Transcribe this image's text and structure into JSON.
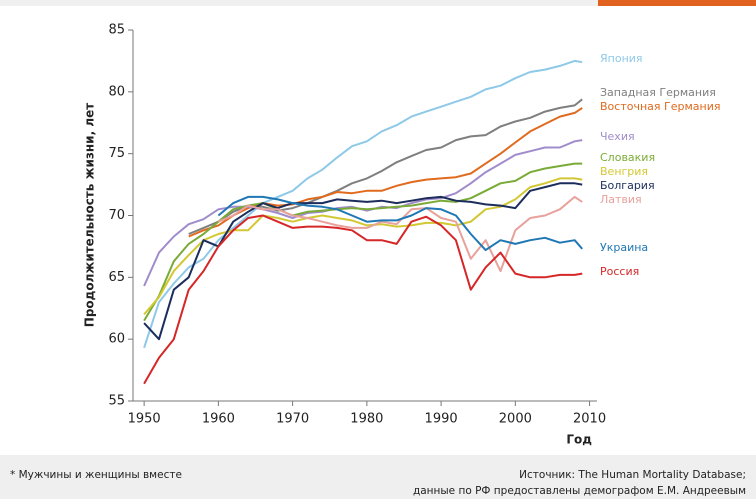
{
  "chart_data": {
    "type": "line",
    "y_label": "Продолжительность жизни, лет",
    "x_label": "Год",
    "xlim": [
      1948.5,
      2011
    ],
    "xticks": [
      1950,
      1960,
      1970,
      1980,
      1990,
      2000,
      2010
    ],
    "ylim": [
      55,
      85
    ],
    "yticks": [
      55,
      60,
      65,
      70,
      75,
      80,
      85
    ],
    "x": [
      1950,
      1952,
      1954,
      1956,
      1958,
      1960,
      1962,
      1964,
      1966,
      1968,
      1970,
      1972,
      1974,
      1976,
      1978,
      1980,
      1982,
      1984,
      1986,
      1988,
      1990,
      1992,
      1994,
      1996,
      1998,
      2000,
      2002,
      2004,
      2006,
      2008,
      2009
    ],
    "series": [
      {
        "name": "Япония",
        "color": "#8ec9e8",
        "values": [
          59.3,
          63,
          64.5,
          65.8,
          66.5,
          68,
          69,
          70,
          71,
          71.5,
          72,
          73,
          73.7,
          74.7,
          75.6,
          76,
          76.8,
          77.3,
          78,
          78.4,
          78.8,
          79.2,
          79.6,
          80.2,
          80.5,
          81.1,
          81.6,
          81.8,
          82.1,
          82.5,
          82.4
        ]
      },
      {
        "name": "Западная Германия",
        "color": "#7f7f7f",
        "values": [
          null,
          null,
          null,
          68.5,
          69,
          69.5,
          70.3,
          70.8,
          70.7,
          70.4,
          70.6,
          71,
          71.5,
          72,
          72.6,
          73,
          73.6,
          74.3,
          74.8,
          75.3,
          75.5,
          76.1,
          76.4,
          76.5,
          77.2,
          77.6,
          77.9,
          78.4,
          78.7,
          78.9,
          79.4
        ]
      },
      {
        "name": "Восточная Германия",
        "color": "#e06a1e",
        "values": [
          null,
          null,
          null,
          68.3,
          68.8,
          69.2,
          70,
          70.6,
          71,
          70.8,
          70.9,
          71.3,
          71.5,
          71.9,
          71.8,
          72,
          72,
          72.4,
          72.7,
          72.9,
          73,
          73.1,
          73.4,
          74.2,
          75,
          75.9,
          76.8,
          77.4,
          78,
          78.3,
          78.7
        ]
      },
      {
        "name": "Чехия",
        "color": "#a08ccb",
        "values": [
          64.3,
          67,
          68.3,
          69.3,
          69.7,
          70.5,
          70.7,
          70.7,
          70.5,
          70.2,
          69.8,
          70.2,
          70.3,
          70.6,
          70.7,
          70.4,
          70.7,
          70.6,
          71,
          71.3,
          71.4,
          71.8,
          72.6,
          73.5,
          74.2,
          74.9,
          75.2,
          75.5,
          75.5,
          76,
          76.1
        ]
      },
      {
        "name": "Словакия",
        "color": "#7aab37",
        "values": [
          61.5,
          63.5,
          66.3,
          67.7,
          68.5,
          69.5,
          70.5,
          70.8,
          71,
          70.5,
          70,
          70.3,
          70.4,
          70.5,
          70.6,
          70.5,
          70.6,
          70.7,
          70.8,
          71,
          71.2,
          71.1,
          71.4,
          72,
          72.6,
          72.8,
          73.5,
          73.8,
          74,
          74.2,
          74.2
        ]
      },
      {
        "name": "Венгрия",
        "color": "#d2c834",
        "values": [
          62,
          63.4,
          65.5,
          66.8,
          68,
          68.5,
          68.8,
          68.8,
          70,
          69.8,
          69.5,
          69.8,
          70,
          69.8,
          69.6,
          69.2,
          69.3,
          69.1,
          69.2,
          69.4,
          69.4,
          69.2,
          69.5,
          70.5,
          70.7,
          71.3,
          72.3,
          72.6,
          73,
          73,
          72.9
        ]
      },
      {
        "name": "Болгария",
        "color": "#1c2d5c",
        "values": [
          61.3,
          60,
          64,
          65,
          68,
          67.5,
          69.5,
          70.3,
          71,
          70.6,
          71,
          71,
          71,
          71.3,
          71.2,
          71.1,
          71.2,
          71,
          71.2,
          71.4,
          71.5,
          71.2,
          71.1,
          70.9,
          70.8,
          70.6,
          72,
          72.3,
          72.6,
          72.6,
          72.5
        ]
      },
      {
        "name": "Латвия",
        "color": "#e8a19b",
        "values": [
          null,
          null,
          null,
          null,
          null,
          69.5,
          70,
          70.8,
          70.5,
          70.5,
          70,
          69.8,
          69.5,
          69.2,
          69,
          69,
          69.5,
          69.3,
          70.5,
          70.6,
          69.8,
          69.5,
          66.5,
          68,
          65.5,
          68.8,
          69.8,
          70,
          70.5,
          71.5,
          71.1
        ]
      },
      {
        "name": "Украина",
        "color": "#1f77b4",
        "values": [
          null,
          null,
          null,
          null,
          null,
          70,
          71,
          71.5,
          71.5,
          71.3,
          71,
          70.8,
          70.7,
          70.5,
          70,
          69.5,
          69.6,
          69.6,
          70,
          70.6,
          70.5,
          70,
          68.5,
          67.2,
          68,
          67.7,
          68,
          68.2,
          67.8,
          68,
          67.3
        ]
      },
      {
        "name": "Россия",
        "color": "#d62728",
        "values": [
          56.4,
          58.5,
          60,
          64,
          65.5,
          67.5,
          68.8,
          69.8,
          70,
          69.5,
          69,
          69.1,
          69.1,
          69,
          68.8,
          68,
          68,
          67.7,
          69.5,
          69.9,
          69.2,
          68,
          64,
          65.8,
          67,
          65.3,
          65,
          65,
          65.2,
          65.2,
          65.3
        ]
      }
    ],
    "footnote": "* Мужчины и женщины вместе",
    "source": [
      "Источник: The Human Mortality Database;",
      "данные по РФ предоставлены демографом Е.М. Андреевым"
    ]
  }
}
